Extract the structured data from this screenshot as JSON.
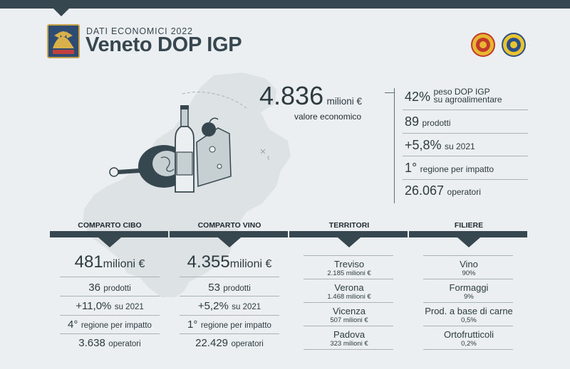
{
  "header": {
    "subtitle": "DATI ECONOMICI 2022",
    "title": "Veneto DOP IGP"
  },
  "colors": {
    "dark": "#37474f",
    "background": "#eceff1",
    "map": "#dde2e4"
  },
  "main_value": {
    "value": "4.836",
    "unit": "milioni €",
    "label": "valore economico"
  },
  "stats": [
    {
      "value": "42%",
      "unit_line1": "peso DOP IGP",
      "unit_line2": "su agroalimentare"
    },
    {
      "value": "89",
      "unit": "prodotti"
    },
    {
      "value": "+5,8%",
      "unit": "su 2021"
    },
    {
      "value": "1°",
      "unit": "regione per impatto"
    },
    {
      "value": "26.067",
      "unit": "operatori"
    }
  ],
  "cibo": {
    "heading": "COMPARTO CIBO",
    "value": "481",
    "value_unit": "milioni €",
    "prodotti": "36",
    "prodotti_label": "prodotti",
    "crescita": "+11,0%",
    "crescita_label": "su 2021",
    "rank": "4°",
    "rank_label": "regione per impatto",
    "operatori": "3.638",
    "operatori_label": "operatori"
  },
  "vino": {
    "heading": "COMPARTO VINO",
    "value": "4.355",
    "value_unit": "milioni €",
    "prodotti": "53",
    "prodotti_label": "prodotti",
    "crescita": "+5,2%",
    "crescita_label": "su 2021",
    "rank": "1°",
    "rank_label": "regione per impatto",
    "operatori": "22.429",
    "operatori_label": "operatori"
  },
  "territori": {
    "heading": "TERRITORI",
    "items": [
      {
        "name": "Treviso",
        "value": "2.185 milioni €"
      },
      {
        "name": "Verona",
        "value": "1.468 milioni €"
      },
      {
        "name": "Vicenza",
        "value": "507 milioni €"
      },
      {
        "name": "Padova",
        "value": "323 milioni €"
      }
    ]
  },
  "filiere": {
    "heading": "FILIERE",
    "items": [
      {
        "name": "Vino",
        "value": "90%"
      },
      {
        "name": "Formaggi",
        "value": "9%"
      },
      {
        "name": "Prod. a base di carne",
        "value": "0,5%"
      },
      {
        "name": "Ortofrutticoli",
        "value": "0,2%"
      }
    ]
  }
}
